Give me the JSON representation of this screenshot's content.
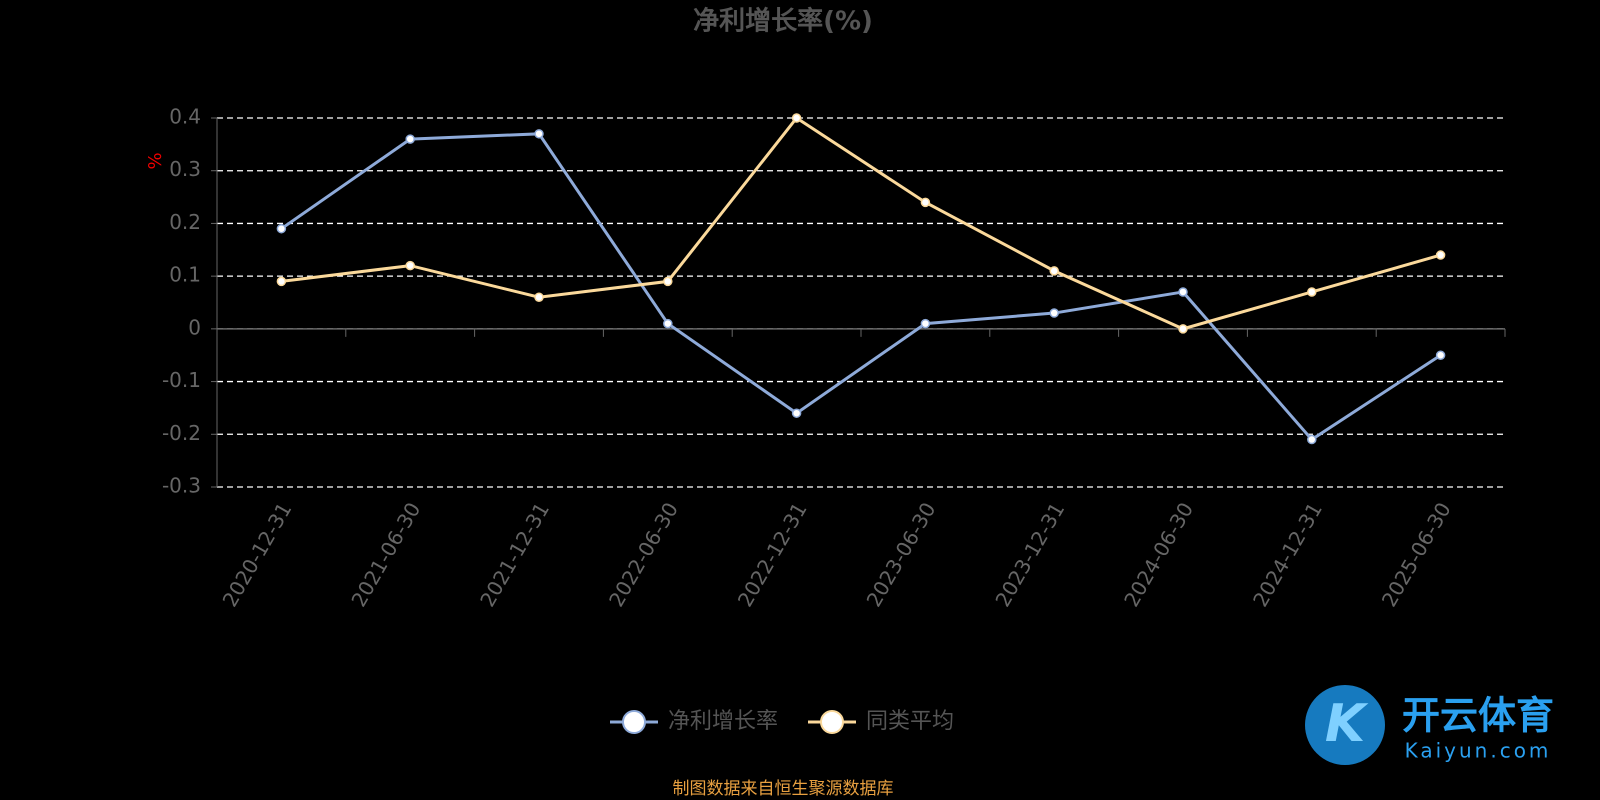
{
  "chart_data": {
    "type": "line",
    "title": "净利增长率(%)",
    "y_label": "%",
    "categories": [
      "2020-12-31",
      "2021-06-30",
      "2021-12-31",
      "2022-06-30",
      "2022-12-31",
      "2023-06-30",
      "2023-12-31",
      "2024-06-30",
      "2024-12-31",
      "2025-06-30"
    ],
    "series": [
      {
        "name": "净利增长率",
        "color": "#8eaad9",
        "values": [
          0.19,
          0.36,
          0.37,
          0.01,
          -0.16,
          0.01,
          0.03,
          0.07,
          -0.21,
          -0.05
        ]
      },
      {
        "name": "同类平均",
        "color": "#fbd99b",
        "values": [
          0.09,
          0.12,
          0.06,
          0.09,
          0.4,
          0.24,
          0.11,
          0.0,
          0.07,
          0.14
        ]
      }
    ],
    "ylim": [
      -0.3,
      0.4
    ],
    "yticks": [
      -0.3,
      -0.2,
      -0.1,
      0,
      0.1,
      0.2,
      0.3,
      0.4
    ],
    "grid": true,
    "legend": "bottom"
  },
  "source": "制图数据来自恒生聚源数据库",
  "watermark": {
    "name": "开云体育",
    "site": "Kaiyun.com"
  }
}
